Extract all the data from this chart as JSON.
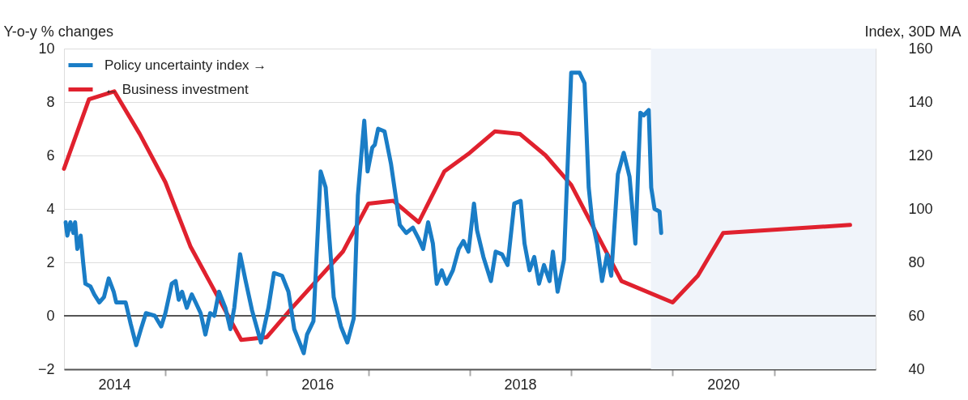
{
  "chart_data": {
    "type": "line",
    "ylabel": "Y-o-y % changes",
    "y2label": "Index, 30D MA",
    "xlim": [
      "2014-01",
      "2022-01"
    ],
    "xticks": [
      {
        "value": "2014-07",
        "label": "2014"
      },
      {
        "value": "2015-01",
        "label": null
      },
      {
        "value": "2016-01",
        "label": null
      },
      {
        "value": "2016-07",
        "label": "2016"
      },
      {
        "value": "2017-01",
        "label": null
      },
      {
        "value": "2018-01",
        "label": null
      },
      {
        "value": "2018-07",
        "label": "2018"
      },
      {
        "value": "2019-01",
        "label": null
      },
      {
        "value": "2020-01",
        "label": null
      },
      {
        "value": "2020-07",
        "label": "2020"
      },
      {
        "value": "2021-01",
        "label": null
      }
    ],
    "ylim": [
      -2,
      10
    ],
    "yticks": [
      -2,
      0,
      2,
      4,
      6,
      8,
      10
    ],
    "y2lim": [
      40,
      160
    ],
    "y2ticks": [
      40,
      60,
      80,
      100,
      120,
      140,
      160
    ],
    "grid": "y",
    "legend": "top left",
    "line_style": "solid",
    "ref_lines": [
      {
        "axis": "y",
        "value": 0,
        "color": "#555555"
      }
    ],
    "bands": [
      {
        "axis": "x",
        "from": "2019-10-15",
        "to": "2022-01",
        "color": "#f0f4fa"
      }
    ],
    "series": [
      {
        "name": "Policy uncertainty index →",
        "color": "#1a7dc6",
        "axis": "y2",
        "x": [
          "2014-01-07",
          "2014-01-13",
          "2014-01-24",
          "2014-02-04",
          "2014-02-10",
          "2014-02-18",
          "2014-03-02",
          "2014-03-11",
          "2014-03-19",
          "2014-04-06",
          "2014-04-20",
          "2014-05-08",
          "2014-05-25",
          "2014-06-11",
          "2014-06-29",
          "2014-07-08",
          "2014-08-11",
          "2014-08-29",
          "2014-09-18",
          "2014-10-05",
          "2014-10-23",
          "2014-11-24",
          "2014-12-17",
          "2015-01-01",
          "2015-01-24",
          "2015-02-07",
          "2015-02-18",
          "2015-03-02",
          "2015-03-19",
          "2015-04-06",
          "2015-04-20",
          "2015-05-08",
          "2015-05-25",
          "2015-06-11",
          "2015-06-26",
          "2015-07-13",
          "2015-08-05",
          "2015-08-23",
          "2015-09-06",
          "2015-09-27",
          "2015-10-17",
          "2015-11-09",
          "2015-12-11",
          "2016-01-07",
          "2016-01-27",
          "2016-02-25",
          "2016-03-19",
          "2016-04-09",
          "2016-05-13",
          "2016-05-25",
          "2016-06-17",
          "2016-07-13",
          "2016-07-31",
          "2016-08-29",
          "2016-09-24",
          "2016-10-17",
          "2016-11-09",
          "2016-11-24",
          "2016-12-17",
          "2016-12-29",
          "2017-01-15",
          "2017-01-24",
          "2017-02-05",
          "2017-02-28",
          "2017-03-23",
          "2017-04-13",
          "2017-04-24",
          "2017-05-17",
          "2017-06-10",
          "2017-06-30",
          "2017-07-17",
          "2017-08-04",
          "2017-08-21",
          "2017-09-04",
          "2017-09-22",
          "2017-10-09",
          "2017-11-01",
          "2017-11-22",
          "2017-12-09",
          "2017-12-27",
          "2018-01-16",
          "2018-01-27",
          "2018-02-19",
          "2018-03-18",
          "2018-04-04",
          "2018-04-27",
          "2018-05-17",
          "2018-06-10",
          "2018-07-03",
          "2018-07-17",
          "2018-08-04",
          "2018-08-21",
          "2018-09-07",
          "2018-09-25",
          "2018-10-15",
          "2018-10-27",
          "2018-11-13",
          "2018-12-06",
          "2019-01-01",
          "2019-01-31",
          "2019-02-18",
          "2019-03-05",
          "2019-03-17",
          "2019-04-04",
          "2019-04-22",
          "2019-05-10",
          "2019-05-25",
          "2019-06-18",
          "2019-07-09",
          "2019-07-30",
          "2019-08-20",
          "2019-09-07",
          "2019-09-19",
          "2019-10-07",
          "2019-10-16",
          "2019-10-28",
          "2019-11-15",
          "2019-11-21"
        ],
        "values": [
          95,
          90,
          95,
          91,
          95,
          85,
          90,
          80,
          72,
          71,
          68,
          65,
          67,
          74,
          69,
          65,
          65,
          57,
          49,
          55,
          61,
          60,
          56,
          61,
          72,
          73,
          66,
          69,
          63,
          68,
          65,
          61,
          53,
          61,
          60,
          69,
          63,
          55,
          63,
          83,
          73,
          62,
          50,
          63,
          76,
          75,
          69,
          55,
          46,
          53,
          58,
          114,
          108,
          67,
          56,
          50,
          59,
          105,
          133,
          114,
          123,
          124,
          130,
          129,
          117,
          102,
          94,
          91,
          93,
          89,
          85,
          95,
          87,
          72,
          77,
          72,
          77,
          85,
          88,
          84,
          102,
          92,
          82,
          73,
          84,
          83,
          79,
          102,
          103,
          87,
          77,
          82,
          72,
          79,
          73,
          84,
          69,
          81,
          151,
          151,
          147,
          108,
          96,
          87,
          73,
          83,
          75,
          113,
          121,
          112,
          87,
          136,
          135,
          137,
          108,
          100,
          99,
          91
        ]
      },
      {
        "name": "← Business investment",
        "color": "#e0212e",
        "axis": "y",
        "x": [
          "2014-01",
          "2014-04",
          "2014-07",
          "2014-10",
          "2015-01",
          "2015-04",
          "2015-10",
          "2016-01",
          "2016-04",
          "2016-10",
          "2017-01",
          "2017-04",
          "2017-07",
          "2017-10",
          "2018-01",
          "2018-04",
          "2018-07",
          "2018-10",
          "2019-01",
          "2019-07",
          "2020-01",
          "2020-04",
          "2020-07",
          "2021-10"
        ],
        "values": [
          5.5,
          8.1,
          8.4,
          6.8,
          5.0,
          2.6,
          -0.9,
          -0.8,
          0.3,
          2.4,
          4.2,
          4.3,
          3.5,
          5.4,
          6.1,
          6.9,
          6.8,
          6.0,
          4.9,
          1.3,
          0.5,
          1.5,
          3.1,
          3.4
        ]
      }
    ]
  }
}
